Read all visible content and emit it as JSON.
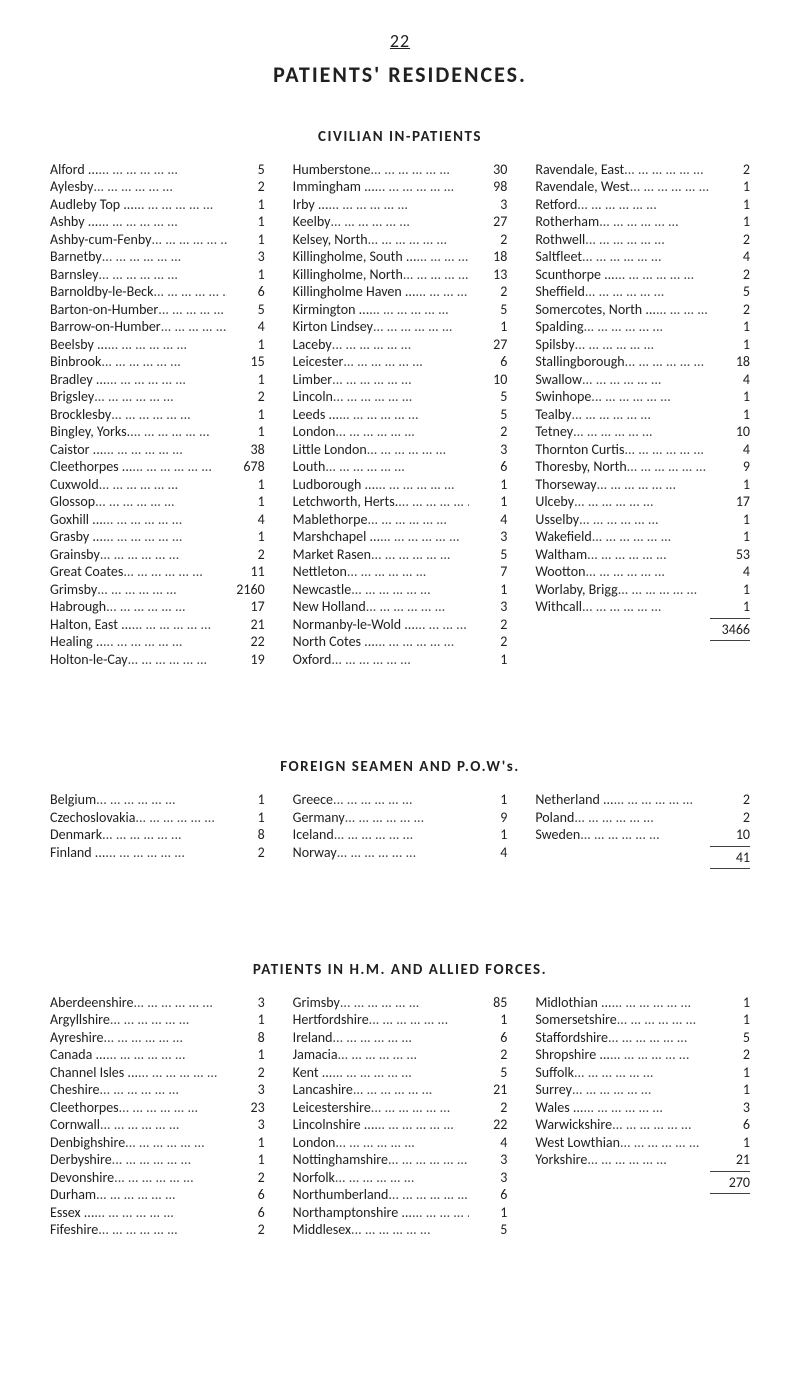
{
  "page_number": "22",
  "title": "PATIENTS' RESIDENCES.",
  "sections": {
    "civilian": {
      "heading": "CIVILIAN IN-PATIENTS",
      "columns": [
        [
          {
            "place": "Alford ...",
            "value": "5"
          },
          {
            "place": "Aylesby",
            "value": "2"
          },
          {
            "place": "Audleby Top ...",
            "value": "1"
          },
          {
            "place": "Ashby ...",
            "value": "1"
          },
          {
            "place": "Ashby-cum-Fenby",
            "value": "1"
          },
          {
            "place": "Barnetby",
            "value": "3"
          },
          {
            "place": "Barnsley",
            "value": "1"
          },
          {
            "place": "Barnoldby-le-Beck",
            "value": "6"
          },
          {
            "place": "Barton-on-Humber",
            "value": "5"
          },
          {
            "place": "Barrow-on-Humber",
            "value": "4"
          },
          {
            "place": "Beelsby ...",
            "value": "1"
          },
          {
            "place": "Binbrook",
            "value": "15"
          },
          {
            "place": "Bradley ...",
            "value": "1"
          },
          {
            "place": "Brigsley",
            "value": "2"
          },
          {
            "place": "Brocklesby",
            "value": "1"
          },
          {
            "place": "Bingley, Yorks.",
            "value": "1"
          },
          {
            "place": "Caistor ...",
            "value": "38"
          },
          {
            "place": "Cleethorpes ...",
            "value": "678"
          },
          {
            "place": "Cuxwold",
            "value": "1"
          },
          {
            "place": "Glossop",
            "value": "1"
          },
          {
            "place": "Goxhill ...",
            "value": "4"
          },
          {
            "place": "Grasby ...",
            "value": "1"
          },
          {
            "place": "Grainsby",
            "value": "2"
          },
          {
            "place": "Great Coates",
            "value": "11"
          },
          {
            "place": "Grimsby",
            "value": "2160"
          },
          {
            "place": "Habrough",
            "value": "17"
          },
          {
            "place": "Halton, East ...",
            "value": "21"
          },
          {
            "place": "Healing ..",
            "value": "22"
          },
          {
            "place": "Holton-le-Cay",
            "value": "19"
          }
        ],
        [
          {
            "place": "Humberstone",
            "value": "30"
          },
          {
            "place": "Immingham ...",
            "value": "98"
          },
          {
            "place": "Irby ...",
            "value": "3"
          },
          {
            "place": "Keelby",
            "value": "27"
          },
          {
            "place": "Kelsey, North",
            "value": "2"
          },
          {
            "place": "Killingholme, South ...",
            "value": "18"
          },
          {
            "place": "Killingholme, North",
            "value": "13"
          },
          {
            "place": "Killingholme Haven ...",
            "value": "2"
          },
          {
            "place": "Kirmington ...",
            "value": "5"
          },
          {
            "place": "Kirton Lindsey",
            "value": "1"
          },
          {
            "place": "Laceby",
            "value": "27"
          },
          {
            "place": "Leicester",
            "value": "6"
          },
          {
            "place": "Limber",
            "value": "10"
          },
          {
            "place": "Lincoln",
            "value": "5"
          },
          {
            "place": "Leeds ...",
            "value": "5"
          },
          {
            "place": "London",
            "value": "2"
          },
          {
            "place": "Little London",
            "value": "3"
          },
          {
            "place": "Louth",
            "value": "6"
          },
          {
            "place": "Ludborough ...",
            "value": "1"
          },
          {
            "place": "Letchworth, Herts.",
            "value": "1"
          },
          {
            "place": "Mablethorpe",
            "value": "4"
          },
          {
            "place": "Marshchapel ...",
            "value": "3"
          },
          {
            "place": "Market Rasen",
            "value": "5"
          },
          {
            "place": "Nettleton",
            "value": "7"
          },
          {
            "place": "Newcastle",
            "value": "1"
          },
          {
            "place": "New Holland",
            "value": "3"
          },
          {
            "place": "Normanby-le-Wold ...",
            "value": "2"
          },
          {
            "place": "North Cotes ...",
            "value": "2"
          },
          {
            "place": "Oxford",
            "value": "1"
          }
        ],
        [
          {
            "place": "Ravendale, East",
            "value": "2"
          },
          {
            "place": "Ravendale, West",
            "value": "1"
          },
          {
            "place": "Retford",
            "value": "1"
          },
          {
            "place": "Rotherham",
            "value": "1"
          },
          {
            "place": "Rothwell",
            "value": "2"
          },
          {
            "place": "Saltfleet",
            "value": "4"
          },
          {
            "place": "Scunthorpe ...",
            "value": "2"
          },
          {
            "place": "Sheffield",
            "value": "5"
          },
          {
            "place": "Somercotes, North ...",
            "value": "2"
          },
          {
            "place": "Spalding",
            "value": "1"
          },
          {
            "place": "Spilsby",
            "value": "1"
          },
          {
            "place": "Stallingborough",
            "value": "18"
          },
          {
            "place": "Swallow",
            "value": "4"
          },
          {
            "place": "Swinhope",
            "value": "1"
          },
          {
            "place": "Tealby",
            "value": "1"
          },
          {
            "place": "Tetney",
            "value": "10"
          },
          {
            "place": "Thornton Curtis",
            "value": "4"
          },
          {
            "place": "Thoresby, North",
            "value": "9"
          },
          {
            "place": "Thorseway",
            "value": "1"
          },
          {
            "place": "Ulceby",
            "value": "17"
          },
          {
            "place": "Usselby",
            "value": "1"
          },
          {
            "place": "Wakefield",
            "value": "1"
          },
          {
            "place": "Waltham",
            "value": "53"
          },
          {
            "place": "Wootton",
            "value": "4"
          },
          {
            "place": "Worlaby, Brigg",
            "value": "1"
          },
          {
            "place": "Withcall",
            "value": "1"
          }
        ]
      ],
      "total": "3466"
    },
    "foreign": {
      "heading": "FOREIGN SEAMEN AND P.O.W's.",
      "columns": [
        [
          {
            "place": "Belgium",
            "value": "1"
          },
          {
            "place": "Czechoslovakia",
            "value": "1"
          },
          {
            "place": "Denmark",
            "value": "8"
          },
          {
            "place": "Finland ...",
            "value": "2"
          }
        ],
        [
          {
            "place": "Greece",
            "value": "1"
          },
          {
            "place": "Germany",
            "value": "9"
          },
          {
            "place": "Iceland",
            "value": "1"
          },
          {
            "place": "Norway",
            "value": "4"
          }
        ],
        [
          {
            "place": "Netherland ...",
            "value": "2"
          },
          {
            "place": "Poland",
            "value": "2"
          },
          {
            "place": "Sweden",
            "value": "10"
          }
        ]
      ],
      "total": "41"
    },
    "forces": {
      "heading": "PATIENTS IN H.M. AND ALLIED FORCES.",
      "columns": [
        [
          {
            "place": "Aberdeenshire",
            "value": "3"
          },
          {
            "place": "Argyllshire",
            "value": "1"
          },
          {
            "place": "Ayreshire",
            "value": "8"
          },
          {
            "place": "Canada ...",
            "value": "1"
          },
          {
            "place": "Channel Isles ...",
            "value": "2"
          },
          {
            "place": "Cheshire",
            "value": "3"
          },
          {
            "place": "Cleethorpes",
            "value": "23"
          },
          {
            "place": "Cornwall",
            "value": "3"
          },
          {
            "place": "Denbighshire",
            "value": "1"
          },
          {
            "place": "Derbyshire",
            "value": "1"
          },
          {
            "place": "Devonshire",
            "value": "2"
          },
          {
            "place": "Durham",
            "value": "6"
          },
          {
            "place": "Essex ...",
            "value": "6"
          },
          {
            "place": "Fifeshire",
            "value": "2"
          }
        ],
        [
          {
            "place": "Grimsby",
            "value": "85"
          },
          {
            "place": "Hertfordshire",
            "value": "1"
          },
          {
            "place": "Ireland",
            "value": "6"
          },
          {
            "place": "Jamacia",
            "value": "2"
          },
          {
            "place": "Kent ...",
            "value": "5"
          },
          {
            "place": "Lancashire",
            "value": "21"
          },
          {
            "place": "Leicestershire",
            "value": "2"
          },
          {
            "place": "Lincolnshire ...",
            "value": "22"
          },
          {
            "place": "London",
            "value": "4"
          },
          {
            "place": "Nottinghamshire",
            "value": "3"
          },
          {
            "place": "Norfolk",
            "value": "3"
          },
          {
            "place": "Northumberland",
            "value": "6"
          },
          {
            "place": "Northamptonshire ...",
            "value": "1"
          },
          {
            "place": "Middlesex",
            "value": "5"
          }
        ],
        [
          {
            "place": "Midlothian ...",
            "value": "1"
          },
          {
            "place": "Somersetshire",
            "value": "1"
          },
          {
            "place": "Staffordshire",
            "value": "5"
          },
          {
            "place": "Shropshire ...",
            "value": "2"
          },
          {
            "place": "Suffolk",
            "value": "1"
          },
          {
            "place": "Surrey",
            "value": "1"
          },
          {
            "place": "Wales ...",
            "value": "3"
          },
          {
            "place": "Warwickshire",
            "value": "6"
          },
          {
            "place": "West Lowthian",
            "value": "1"
          },
          {
            "place": "Yorkshire",
            "value": "21"
          }
        ]
      ],
      "total": "270"
    }
  }
}
